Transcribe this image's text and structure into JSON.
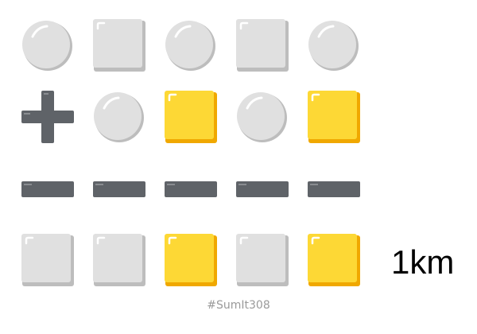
{
  "grid": [
    [
      "circle",
      "square",
      "circle",
      "square",
      "circle"
    ],
    [
      "plus-icon",
      "circle",
      "yellow-square",
      "circle",
      "yellow-square"
    ],
    [
      "minus-icon",
      "minus-icon",
      "minus-icon",
      "minus-icon",
      "minus-icon"
    ],
    [
      "square",
      "square",
      "yellow-square",
      "square",
      "yellow-square"
    ]
  ],
  "result": "1km",
  "hashtag": "#SumIt308",
  "colors": {
    "gray_fill": "#e0e0e0",
    "gray_shadow": "#bdbdbd",
    "yellow_fill": "#fdd835",
    "yellow_shadow": "#f0a800",
    "dark_operator": "#5f6368",
    "answer_text": "#000000",
    "hashtag_text": "#9a9a9a"
  }
}
